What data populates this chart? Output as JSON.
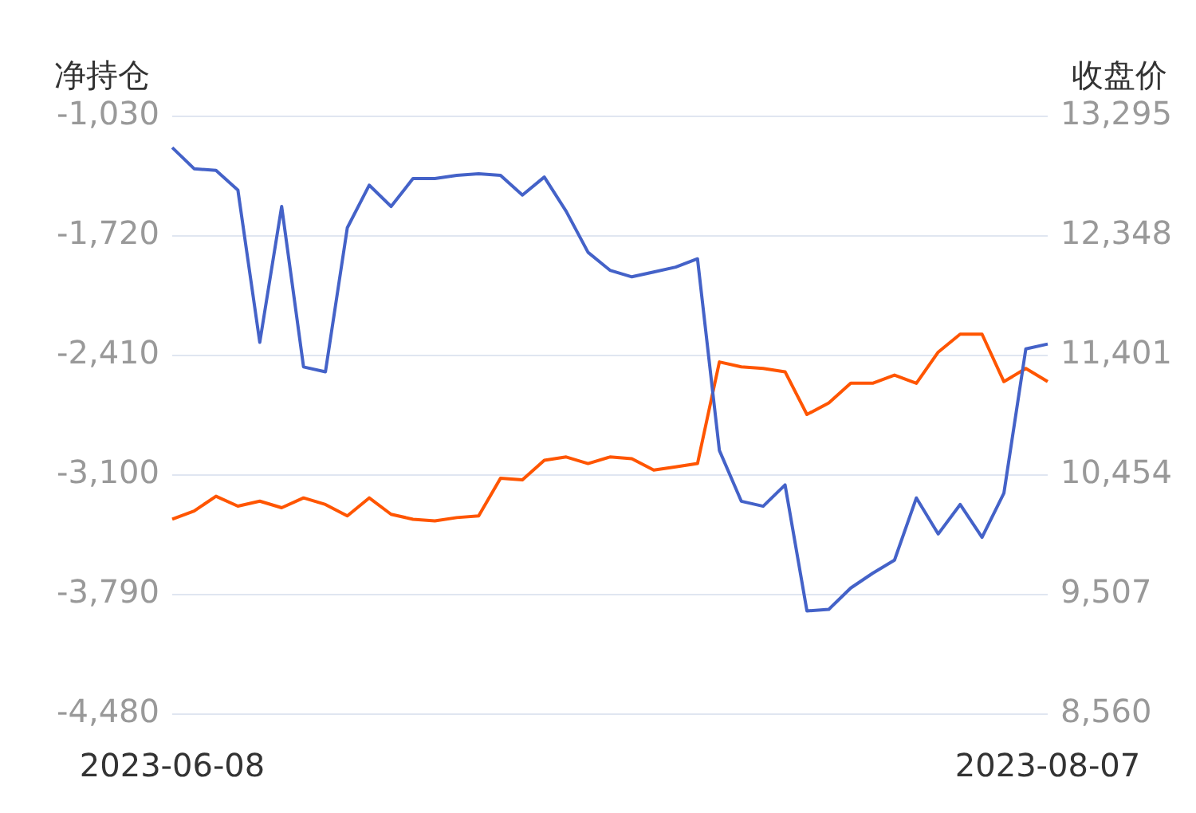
{
  "chart_data": {
    "type": "line",
    "ylabel": "净持仓",
    "y2label": "收盘价",
    "categories": [
      "2023-06-08",
      null,
      null,
      null,
      null,
      null,
      null,
      null,
      null,
      null,
      null,
      null,
      null,
      null,
      null,
      null,
      null,
      null,
      null,
      null,
      null,
      null,
      null,
      null,
      null,
      null,
      null,
      null,
      null,
      null,
      null,
      null,
      null,
      null,
      null,
      null,
      null,
      null,
      null,
      null,
      "2023-08-07"
    ],
    "series": [
      {
        "color": "#4462c8",
        "values": [
          -1210,
          -1332,
          -1342,
          -1455,
          -2334,
          -1550,
          -2476,
          -2504,
          -1673,
          -1427,
          -1550,
          -1389,
          -1389,
          -1370,
          -1361,
          -1370,
          -1484,
          -1380,
          -1578,
          -1815,
          -1918,
          -1956,
          -1928,
          -1900,
          -1852,
          -2958,
          -3251,
          -3280,
          -3157,
          -3884,
          -3875,
          -3752,
          -3667,
          -3591,
          -3232,
          -3440,
          -3270,
          -3459,
          -3204,
          -2372,
          -2344
        ]
      },
      {
        "color": "#ff5500",
        "axis": "y2",
        "values": [
          10104,
          10169,
          10286,
          10208,
          10247,
          10195,
          10273,
          10221,
          10130,
          10273,
          10143,
          10104,
          10091,
          10117,
          10130,
          10429,
          10416,
          10571,
          10597,
          10545,
          10597,
          10584,
          10493,
          10519,
          10545,
          11350,
          11311,
          11298,
          11272,
          10934,
          11025,
          11181,
          11181,
          11246,
          11181,
          11428,
          11570,
          11570,
          11194,
          11298,
          11194
        ]
      }
    ],
    "ylim": [
      -4480,
      -1030
    ],
    "yticks": [
      {
        "value": -1030,
        "label": "-1,030"
      },
      {
        "value": -1720,
        "label": "-1,720"
      },
      {
        "value": -2410,
        "label": "-2,410"
      },
      {
        "value": -3100,
        "label": "-3,100"
      },
      {
        "value": -3790,
        "label": "-3,790"
      },
      {
        "value": -4480,
        "label": "-4,480"
      }
    ],
    "y2lim": [
      8560,
      13295
    ],
    "y2ticks": [
      {
        "value": 8560,
        "label": "8,560"
      },
      {
        "value": 9507,
        "label": "9,507"
      },
      {
        "value": 10454,
        "label": "10,454"
      },
      {
        "value": 11401,
        "label": "11,401"
      },
      {
        "value": 12348,
        "label": "12,348"
      },
      {
        "value": 13295,
        "label": "13,295"
      }
    ],
    "grid": "y",
    "legend": false,
    "marker": "none",
    "line_style": "solid"
  }
}
